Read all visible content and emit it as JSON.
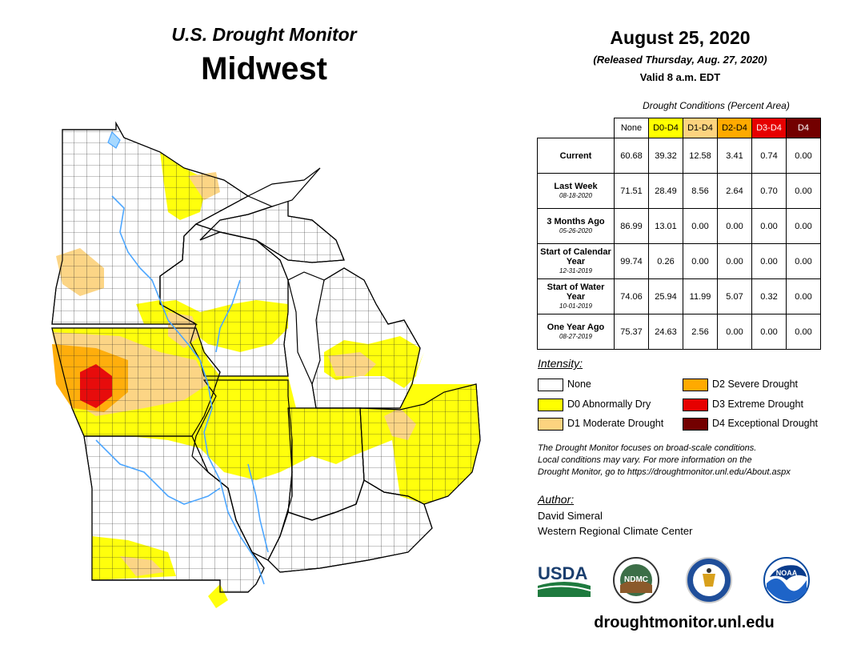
{
  "header": {
    "product": "U.S. Drought Monitor",
    "region": "Midwest",
    "date": "August 25, 2020",
    "released": "(Released Thursday, Aug. 27, 2020)",
    "valid": "Valid 8 a.m. EDT"
  },
  "table": {
    "caption": "Drought Conditions (Percent Area)",
    "columns": [
      "None",
      "D0-D4",
      "D1-D4",
      "D2-D4",
      "D3-D4",
      "D4"
    ],
    "column_colors": [
      "#ffffff",
      "#ffff00",
      "#fcd37f",
      "#ffaa00",
      "#e60000",
      "#730000"
    ],
    "rows": [
      {
        "label": "Current",
        "sublabel": "",
        "values": [
          "60.68",
          "39.32",
          "12.58",
          "3.41",
          "0.74",
          "0.00"
        ]
      },
      {
        "label": "Last Week",
        "sublabel": "08-18-2020",
        "values": [
          "71.51",
          "28.49",
          "8.56",
          "2.64",
          "0.70",
          "0.00"
        ]
      },
      {
        "label": "3 Months Ago",
        "sublabel": "05-26-2020",
        "values": [
          "86.99",
          "13.01",
          "0.00",
          "0.00",
          "0.00",
          "0.00"
        ]
      },
      {
        "label": "Start of Calendar Year",
        "sublabel": "12-31-2019",
        "values": [
          "99.74",
          "0.26",
          "0.00",
          "0.00",
          "0.00",
          "0.00"
        ]
      },
      {
        "label": "Start of Water Year",
        "sublabel": "10-01-2019",
        "values": [
          "74.06",
          "25.94",
          "11.99",
          "5.07",
          "0.32",
          "0.00"
        ]
      },
      {
        "label": "One Year Ago",
        "sublabel": "08-27-2019",
        "values": [
          "75.37",
          "24.63",
          "2.56",
          "0.00",
          "0.00",
          "0.00"
        ]
      }
    ]
  },
  "legend": {
    "title": "Intensity:",
    "items": [
      {
        "label": "None",
        "color": "#ffffff"
      },
      {
        "label": "D0 Abnormally Dry",
        "color": "#ffff00"
      },
      {
        "label": "D1 Moderate Drought",
        "color": "#fcd37f"
      },
      {
        "label": "D2 Severe Drought",
        "color": "#ffaa00"
      },
      {
        "label": "D3 Extreme Drought",
        "color": "#e60000"
      },
      {
        "label": "D4 Exceptional Drought",
        "color": "#730000"
      }
    ]
  },
  "note": {
    "line1": "The Drought Monitor focuses on broad-scale conditions.",
    "line2": "Local conditions may vary. For more information on the",
    "line3": "Drought Monitor, go to https://droughtmonitor.unl.edu/About.aspx"
  },
  "author": {
    "title": "Author:",
    "name": "David Simeral",
    "org": "Western Regional Climate Center"
  },
  "logos": {
    "usda": "USDA",
    "ndmc": "NDMC",
    "noaa": "NOAA"
  },
  "website": "droughtmonitor.unl.edu"
}
